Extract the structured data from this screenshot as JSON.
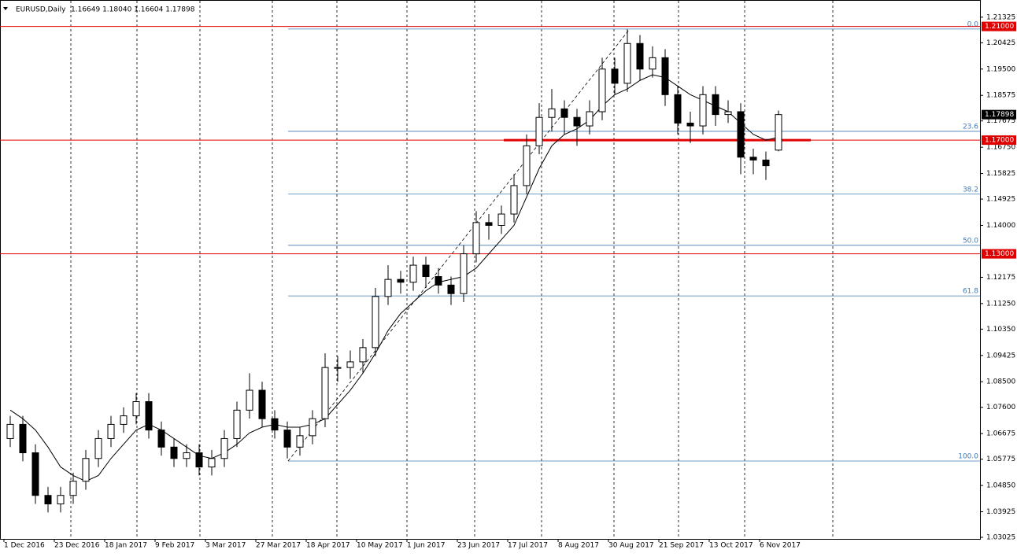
{
  "chart_data": {
    "type": "candlestick",
    "title": "EURUSD,Daily",
    "header_prices": "1.16649 1.18040 1.16604 1.17898",
    "categories": [
      "1 Dec 2016",
      null,
      null,
      null,
      "23 Dec 2016",
      null,
      null,
      null,
      "18 Jan 2017",
      null,
      null,
      null,
      "9 Feb 2017",
      null,
      null,
      null,
      "3 Mar 2017",
      null,
      null,
      null,
      "27 Mar 2017",
      null,
      null,
      null,
      "18 Apr 2017",
      null,
      null,
      null,
      "10 May 2017",
      null,
      null,
      null,
      "1 Jun 2017",
      null,
      null,
      null,
      "23 Jun 2017",
      null,
      null,
      null,
      "17 Jul 2017",
      null,
      null,
      null,
      "8 Aug 2017",
      null,
      null,
      null,
      "30 Aug 2017",
      null,
      null,
      null,
      "21 Sep 2017",
      null,
      null,
      null,
      "13 Oct 2017",
      null,
      null,
      null,
      "6 Nov 2017",
      null
    ],
    "candles": [
      [
        1.065,
        1.073,
        1.062,
        1.07
      ],
      [
        1.07,
        1.073,
        1.057,
        1.06
      ],
      [
        1.06,
        1.063,
        1.042,
        1.045
      ],
      [
        1.045,
        1.048,
        1.039,
        1.042
      ],
      [
        1.042,
        1.048,
        1.039,
        1.045
      ],
      [
        1.045,
        1.053,
        1.042,
        1.05
      ],
      [
        1.05,
        1.061,
        1.047,
        1.058
      ],
      [
        1.058,
        1.068,
        1.055,
        1.065
      ],
      [
        1.065,
        1.073,
        1.062,
        1.07
      ],
      [
        1.07,
        1.076,
        1.067,
        1.073
      ],
      [
        1.073,
        1.081,
        1.07,
        1.078
      ],
      [
        1.078,
        1.081,
        1.065,
        1.068
      ],
      [
        1.068,
        1.071,
        1.059,
        1.062
      ],
      [
        1.062,
        1.065,
        1.055,
        1.058
      ],
      [
        1.058,
        1.063,
        1.055,
        1.06
      ],
      [
        1.06,
        1.063,
        1.052,
        1.055
      ],
      [
        1.055,
        1.061,
        1.052,
        1.058
      ],
      [
        1.058,
        1.068,
        1.055,
        1.065
      ],
      [
        1.065,
        1.078,
        1.062,
        1.075
      ],
      [
        1.075,
        1.088,
        1.072,
        1.082
      ],
      [
        1.082,
        1.085,
        1.069,
        1.072
      ],
      [
        1.072,
        1.075,
        1.065,
        1.068
      ],
      [
        1.068,
        1.071,
        1.058,
        1.062
      ],
      [
        1.062,
        1.069,
        1.059,
        1.066
      ],
      [
        1.066,
        1.075,
        1.063,
        1.072
      ],
      [
        1.072,
        1.095,
        1.069,
        1.09
      ],
      [
        1.09,
        1.094,
        1.085,
        1.09
      ],
      [
        1.09,
        1.096,
        1.086,
        1.092
      ],
      [
        1.092,
        1.1,
        1.088,
        1.097
      ],
      [
        1.097,
        1.118,
        1.094,
        1.115
      ],
      [
        1.115,
        1.126,
        1.112,
        1.121
      ],
      [
        1.121,
        1.124,
        1.116,
        1.12
      ],
      [
        1.12,
        1.129,
        1.117,
        1.126
      ],
      [
        1.126,
        1.129,
        1.118,
        1.122
      ],
      [
        1.122,
        1.125,
        1.116,
        1.119
      ],
      [
        1.119,
        1.122,
        1.112,
        1.116
      ],
      [
        1.116,
        1.133,
        1.113,
        1.13
      ],
      [
        1.13,
        1.145,
        1.127,
        1.141
      ],
      [
        1.141,
        1.144,
        1.135,
        1.14
      ],
      [
        1.14,
        1.147,
        1.137,
        1.144
      ],
      [
        1.144,
        1.158,
        1.141,
        1.154
      ],
      [
        1.154,
        1.172,
        1.151,
        1.168
      ],
      [
        1.168,
        1.183,
        1.165,
        1.178
      ],
      [
        1.178,
        1.188,
        1.173,
        1.181
      ],
      [
        1.181,
        1.184,
        1.172,
        1.178
      ],
      [
        1.178,
        1.181,
        1.168,
        1.175
      ],
      [
        1.175,
        1.184,
        1.172,
        1.18
      ],
      [
        1.18,
        1.199,
        1.177,
        1.195
      ],
      [
        1.195,
        1.199,
        1.186,
        1.19
      ],
      [
        1.19,
        1.209,
        1.187,
        1.204
      ],
      [
        1.204,
        1.207,
        1.191,
        1.195
      ],
      [
        1.195,
        1.203,
        1.192,
        1.199
      ],
      [
        1.199,
        1.202,
        1.182,
        1.186
      ],
      [
        1.186,
        1.189,
        1.172,
        1.176
      ],
      [
        1.176,
        1.18,
        1.169,
        1.175
      ],
      [
        1.175,
        1.189,
        1.172,
        1.186
      ],
      [
        1.186,
        1.189,
        1.175,
        1.179
      ],
      [
        1.179,
        1.184,
        1.176,
        1.18
      ],
      [
        1.18,
        1.183,
        1.158,
        1.164
      ],
      [
        1.164,
        1.167,
        1.158,
        1.163
      ],
      [
        1.163,
        1.166,
        1.156,
        1.161
      ],
      [
        1.16649,
        1.1804,
        1.16604,
        1.17898
      ]
    ],
    "moving_average": [
      1.075,
      1.072,
      1.068,
      1.062,
      1.055,
      1.052,
      1.05,
      1.052,
      1.058,
      1.063,
      1.068,
      1.07,
      1.068,
      1.065,
      1.062,
      1.059,
      1.058,
      1.06,
      1.063,
      1.067,
      1.069,
      1.07,
      1.069,
      1.069,
      1.07,
      1.072,
      1.077,
      1.082,
      1.088,
      1.095,
      1.103,
      1.109,
      1.113,
      1.117,
      1.12,
      1.121,
      1.122,
      1.125,
      1.13,
      1.135,
      1.14,
      1.15,
      1.16,
      1.168,
      1.172,
      1.174,
      1.177,
      1.182,
      1.186,
      1.188,
      1.191,
      1.193,
      1.192,
      1.189,
      1.186,
      1.184,
      1.182,
      1.18,
      1.176,
      1.172,
      1.17,
      1.171
    ],
    "ylim": [
      1.0297,
      1.2193
    ],
    "yticks": [
      1.21325,
      1.20425,
      {
        "value": 1.195,
        "label": "1.19500"
      },
      1.18575,
      1.17675,
      {
        "value": 1.1675,
        "label": "1.16750"
      },
      1.15825,
      1.14925,
      {
        "value": 1.14,
        "label": "1.14000"
      },
      1.12175,
      {
        "value": 1.1125,
        "label": "1.11250"
      },
      {
        "value": 1.1035,
        "label": "1.10350"
      },
      1.09425,
      {
        "value": 1.085,
        "label": "1.08500"
      },
      {
        "value": 1.076,
        "label": "1.07600"
      },
      1.06675,
      1.05775,
      {
        "value": 1.0485,
        "label": "1.04850"
      },
      1.03925,
      1.03025
    ],
    "levels": [
      {
        "value": 1.21,
        "label": "1.21000"
      },
      {
        "value": 1.17,
        "label": "1.17000"
      },
      {
        "value": 1.13,
        "label": "1.13000"
      }
    ],
    "level_color": "#e00000",
    "fib_levels": [
      {
        "value": 1.2091,
        "label": "0.0"
      },
      {
        "value": 1.1731,
        "label": "23.6"
      },
      {
        "value": 1.151,
        "label": "38.2"
      },
      {
        "value": 1.133,
        "label": "50.0"
      },
      {
        "value": 1.1152,
        "label": "61.8"
      },
      {
        "value": 1.0571,
        "label": "100.0"
      }
    ],
    "fib_color": "#3d7ab8",
    "last_price": 1.17898
  }
}
